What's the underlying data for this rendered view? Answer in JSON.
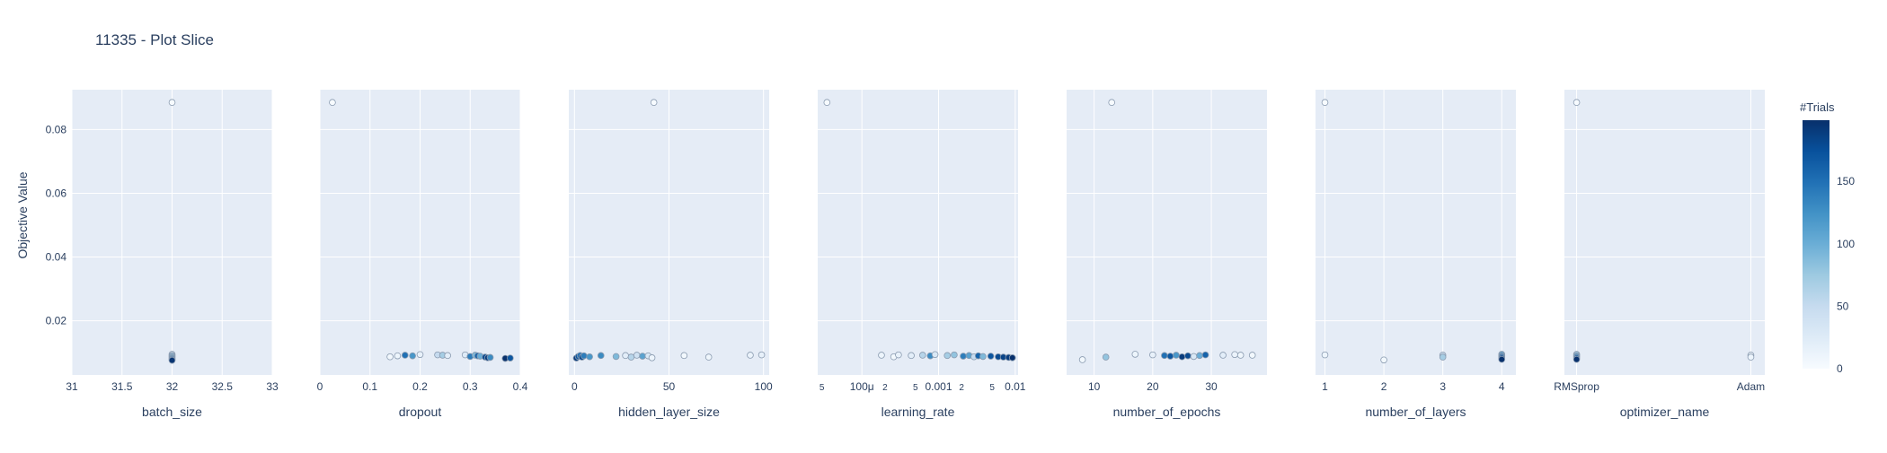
{
  "chart_data": {
    "type": "scatter",
    "title": "11335 - Plot Slice",
    "ylabel": "Objective Value",
    "ylim": [
      0.003,
      0.0925
    ],
    "y_ticks": [
      0.02,
      0.04,
      0.06,
      0.08
    ],
    "y_tick_labels": [
      "0.02",
      "0.04",
      "0.06",
      "0.08"
    ],
    "grid": true,
    "colorbar": {
      "title": "#Trials",
      "range": [
        0,
        199
      ],
      "ticks": [
        0,
        50,
        100,
        150
      ],
      "tick_labels": [
        "0",
        "50",
        "100",
        "150"
      ],
      "color_low": "#f7fbff",
      "color_high": "#08306b"
    },
    "colors": {
      "plot_background": "#e5ecf6",
      "gridline": "#ffffff",
      "text": "#2a3f5f",
      "marker_outline": "#8a9bb0"
    },
    "panels": [
      {
        "param": "batch_size",
        "xlabel": "batch_size",
        "scale": "linear",
        "xlim": [
          31,
          33
        ],
        "ticks": [
          31,
          31.5,
          32,
          32.5,
          33
        ],
        "tick_labels": [
          "31",
          "31.5",
          "32",
          "32.5",
          "33"
        ],
        "points": [
          [
            32,
            0.0885,
            0
          ],
          [
            32,
            0.0095,
            35
          ],
          [
            32,
            0.0091,
            60
          ],
          [
            32,
            0.0088,
            90
          ],
          [
            32,
            0.0084,
            120
          ],
          [
            32,
            0.0081,
            150
          ],
          [
            32,
            0.0078,
            175
          ],
          [
            32,
            0.0076,
            195
          ]
        ]
      },
      {
        "param": "dropout",
        "xlabel": "dropout",
        "scale": "linear",
        "xlim": [
          0,
          0.4
        ],
        "ticks": [
          0,
          0.1,
          0.2,
          0.3,
          0.4
        ],
        "tick_labels": [
          "0",
          "0.1",
          "0.2",
          "0.3",
          "0.4"
        ],
        "points": [
          [
            0.025,
            0.0885,
            0
          ],
          [
            0.14,
            0.0087,
            5
          ],
          [
            0.155,
            0.009,
            10
          ],
          [
            0.17,
            0.0092,
            150
          ],
          [
            0.185,
            0.009,
            120
          ],
          [
            0.2,
            0.0094,
            15
          ],
          [
            0.235,
            0.0093,
            50
          ],
          [
            0.245,
            0.0092,
            70
          ],
          [
            0.255,
            0.0091,
            20
          ],
          [
            0.29,
            0.0093,
            25
          ],
          [
            0.3,
            0.0088,
            140
          ],
          [
            0.31,
            0.0092,
            90
          ],
          [
            0.315,
            0.009,
            160
          ],
          [
            0.32,
            0.0089,
            100
          ],
          [
            0.33,
            0.0086,
            180
          ],
          [
            0.335,
            0.0084,
            190
          ],
          [
            0.34,
            0.0085,
            130
          ],
          [
            0.37,
            0.0082,
            198
          ],
          [
            0.38,
            0.0083,
            170
          ]
        ]
      },
      {
        "param": "hidden_layer_size",
        "xlabel": "hidden_layer_size",
        "scale": "linear",
        "xlim": [
          -3,
          103
        ],
        "ticks": [
          0,
          50,
          100
        ],
        "tick_labels": [
          "0",
          "50",
          "100"
        ],
        "points": [
          [
            42,
            0.0885,
            0
          ],
          [
            1,
            0.0083,
            190
          ],
          [
            2,
            0.0088,
            170
          ],
          [
            3,
            0.0091,
            150
          ],
          [
            4,
            0.0086,
            180
          ],
          [
            5,
            0.009,
            140
          ],
          [
            8,
            0.0087,
            120
          ],
          [
            14,
            0.0091,
            130
          ],
          [
            22,
            0.0088,
            90
          ],
          [
            27,
            0.0091,
            20
          ],
          [
            30,
            0.0086,
            60
          ],
          [
            33,
            0.0092,
            40
          ],
          [
            36,
            0.0089,
            110
          ],
          [
            39,
            0.009,
            30
          ],
          [
            41,
            0.0084,
            10
          ],
          [
            58,
            0.0091,
            5
          ],
          [
            71,
            0.0086,
            8
          ],
          [
            93,
            0.0092,
            12
          ],
          [
            99,
            0.0093,
            15
          ]
        ]
      },
      {
        "param": "learning_rate",
        "xlabel": "learning_rate",
        "scale": "log",
        "xlim": [
          2.65e-05,
          0.0109
        ],
        "ticks": [
          3e-05,
          0.0001,
          0.0002,
          0.0005,
          0.001,
          0.002,
          0.005,
          0.01
        ],
        "tick_labels": [
          "5",
          "100μ",
          "2",
          "5",
          "0.001",
          "2",
          "5",
          "0.01"
        ],
        "tick_minor": [
          true,
          false,
          true,
          true,
          false,
          true,
          true,
          false
        ],
        "points": [
          [
            3.5e-05,
            0.0885,
            0
          ],
          [
            0.00018,
            0.0092,
            10
          ],
          [
            0.00026,
            0.0087,
            5
          ],
          [
            0.0003,
            0.0093,
            15
          ],
          [
            0.00044,
            0.0091,
            20
          ],
          [
            0.00062,
            0.0092,
            60
          ],
          [
            0.00078,
            0.009,
            130
          ],
          [
            0.0009,
            0.0094,
            30
          ],
          [
            0.0013,
            0.0091,
            70
          ],
          [
            0.0016,
            0.0093,
            80
          ],
          [
            0.0021,
            0.0089,
            140
          ],
          [
            0.0025,
            0.0091,
            110
          ],
          [
            0.0029,
            0.0087,
            50
          ],
          [
            0.0033,
            0.009,
            160
          ],
          [
            0.0038,
            0.0088,
            90
          ],
          [
            0.0048,
            0.0089,
            170
          ],
          [
            0.006,
            0.0087,
            180
          ],
          [
            0.007,
            0.0086,
            185
          ],
          [
            0.0082,
            0.0085,
            190
          ],
          [
            0.0092,
            0.0084,
            198
          ]
        ]
      },
      {
        "param": "number_of_epochs",
        "xlabel": "number_of_epochs",
        "scale": "linear",
        "xlim": [
          5.3,
          39.5
        ],
        "ticks": [
          10,
          20,
          30
        ],
        "tick_labels": [
          "10",
          "20",
          "30"
        ],
        "points": [
          [
            13,
            0.0885,
            0
          ],
          [
            8,
            0.0078,
            5
          ],
          [
            12,
            0.0086,
            80
          ],
          [
            17,
            0.0095,
            10
          ],
          [
            20,
            0.0093,
            15
          ],
          [
            22,
            0.0091,
            150
          ],
          [
            23,
            0.0089,
            170
          ],
          [
            24,
            0.0092,
            120
          ],
          [
            25,
            0.0087,
            190
          ],
          [
            26,
            0.009,
            180
          ],
          [
            27,
            0.0088,
            30
          ],
          [
            28,
            0.0091,
            100
          ],
          [
            29,
            0.0093,
            160
          ],
          [
            32,
            0.0092,
            20
          ],
          [
            34,
            0.0094,
            12
          ],
          [
            35,
            0.0092,
            8
          ],
          [
            37,
            0.0092,
            5
          ]
        ]
      },
      {
        "param": "number_of_layers",
        "xlabel": "number_of_layers",
        "scale": "linear",
        "xlim": [
          0.84,
          4.24
        ],
        "ticks": [
          1,
          2,
          3,
          4
        ],
        "tick_labels": [
          "1",
          "2",
          "3",
          "4"
        ],
        "points": [
          [
            1,
            0.0885,
            0
          ],
          [
            1,
            0.0093,
            10
          ],
          [
            2,
            0.0077,
            5
          ],
          [
            3,
            0.0092,
            40
          ],
          [
            3,
            0.0086,
            70
          ],
          [
            4,
            0.0095,
            100
          ],
          [
            4,
            0.0091,
            130
          ],
          [
            4,
            0.0087,
            160
          ],
          [
            4,
            0.0083,
            180
          ],
          [
            4,
            0.0079,
            198
          ]
        ]
      },
      {
        "param": "optimizer_name",
        "xlabel": "optimizer_name",
        "scale": "categorical",
        "xlim": [
          -0.07,
          1.08
        ],
        "categories": [
          "RMSprop",
          "Adam"
        ],
        "ticks": [
          0,
          1
        ],
        "tick_labels": [
          "RMSprop",
          "Adam"
        ],
        "points": [
          [
            0,
            0.0885,
            0
          ],
          [
            0,
            0.0095,
            60
          ],
          [
            0,
            0.0091,
            100
          ],
          [
            0,
            0.0087,
            140
          ],
          [
            0,
            0.0083,
            170
          ],
          [
            0,
            0.0079,
            198
          ],
          [
            1,
            0.0092,
            5
          ],
          [
            1,
            0.0086,
            10
          ]
        ]
      }
    ]
  }
}
